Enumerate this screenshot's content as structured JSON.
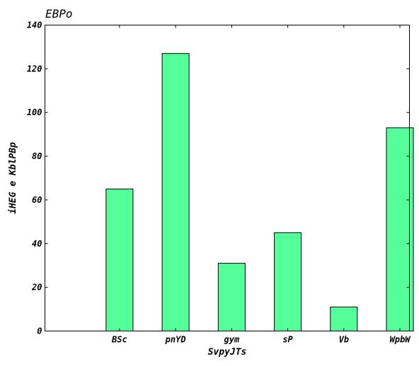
{
  "chart_data": {
    "type": "bar",
    "title": "EBPo",
    "xlabel": "SvpyJTs",
    "ylabel": "iHEG e KblPBp",
    "categories": [
      "BSc",
      "pnYD",
      "gym",
      "sP",
      "Vb",
      "WpbW"
    ],
    "values": [
      65,
      127,
      31,
      45,
      11,
      93
    ],
    "ylim": [
      0,
      140
    ],
    "yticks": [
      0,
      20,
      40,
      60,
      80,
      100,
      120,
      140
    ],
    "grid": false,
    "bar_color": "#55ff99"
  }
}
